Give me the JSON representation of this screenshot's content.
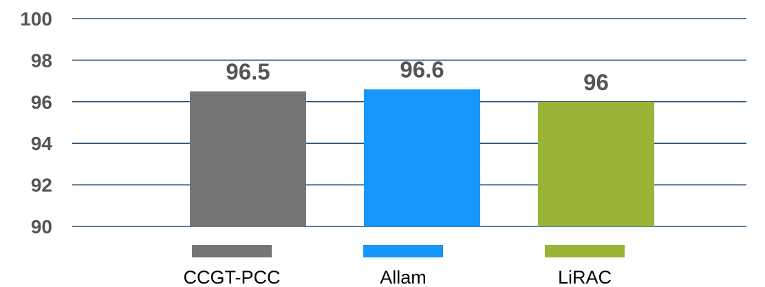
{
  "chart_data": {
    "type": "bar",
    "categories": [
      "CCGT-PCC",
      "Allam",
      "LiRAC"
    ],
    "values": [
      96.5,
      96.6,
      96
    ],
    "data_labels": [
      "96.5",
      "96.6",
      "96"
    ],
    "colors": [
      "#757575",
      "#1796fb",
      "#99b436"
    ],
    "ylim": [
      90,
      100
    ],
    "yticks": [
      100,
      98,
      96,
      94,
      92,
      90
    ],
    "ytick_labels": [
      "100",
      "98",
      "96",
      "94",
      "92",
      "90"
    ],
    "grid": true,
    "gridline_color": "#1f4e79",
    "legend": {
      "placement": "bottom",
      "entries": [
        "CCGT-PCC",
        "Allam",
        "LiRAC"
      ]
    },
    "title": "",
    "xlabel": "",
    "ylabel": ""
  }
}
